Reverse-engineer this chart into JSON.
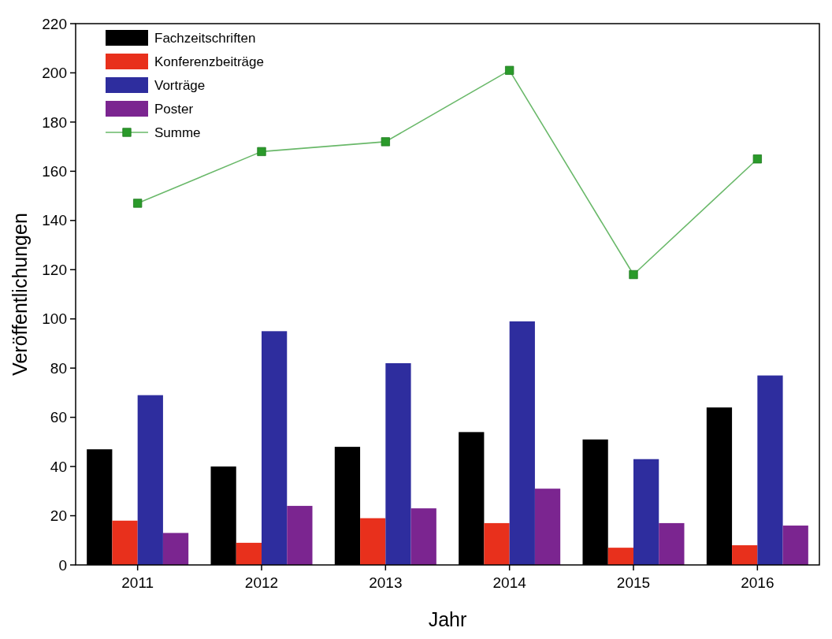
{
  "chart_data": {
    "type": "bar",
    "xlabel": "Jahr",
    "ylabel": "Veröffentlichungen",
    "categories": [
      "2011",
      "2012",
      "2013",
      "2014",
      "2015",
      "2016"
    ],
    "series": [
      {
        "name": "Fachzeitschriften",
        "color": "#000000",
        "values": [
          47,
          40,
          48,
          54,
          51,
          64
        ]
      },
      {
        "name": "Konferenzbeiträge",
        "color": "#e8301c",
        "values": [
          18,
          9,
          19,
          17,
          7,
          8
        ]
      },
      {
        "name": "Vorträge",
        "color": "#2e2d9e",
        "values": [
          69,
          95,
          82,
          99,
          43,
          77
        ]
      },
      {
        "name": "Poster",
        "color": "#7b2590",
        "values": [
          13,
          24,
          23,
          31,
          17,
          16
        ]
      },
      {
        "name": "Summe",
        "type": "line",
        "color": "#2a9a2a",
        "marker": "square",
        "values": [
          147,
          168,
          172,
          201,
          118,
          165
        ]
      }
    ],
    "ylim": [
      0,
      220
    ],
    "yticks": [
      0,
      20,
      40,
      60,
      80,
      100,
      120,
      140,
      160,
      180,
      200,
      220
    ],
    "legend": "top left"
  }
}
